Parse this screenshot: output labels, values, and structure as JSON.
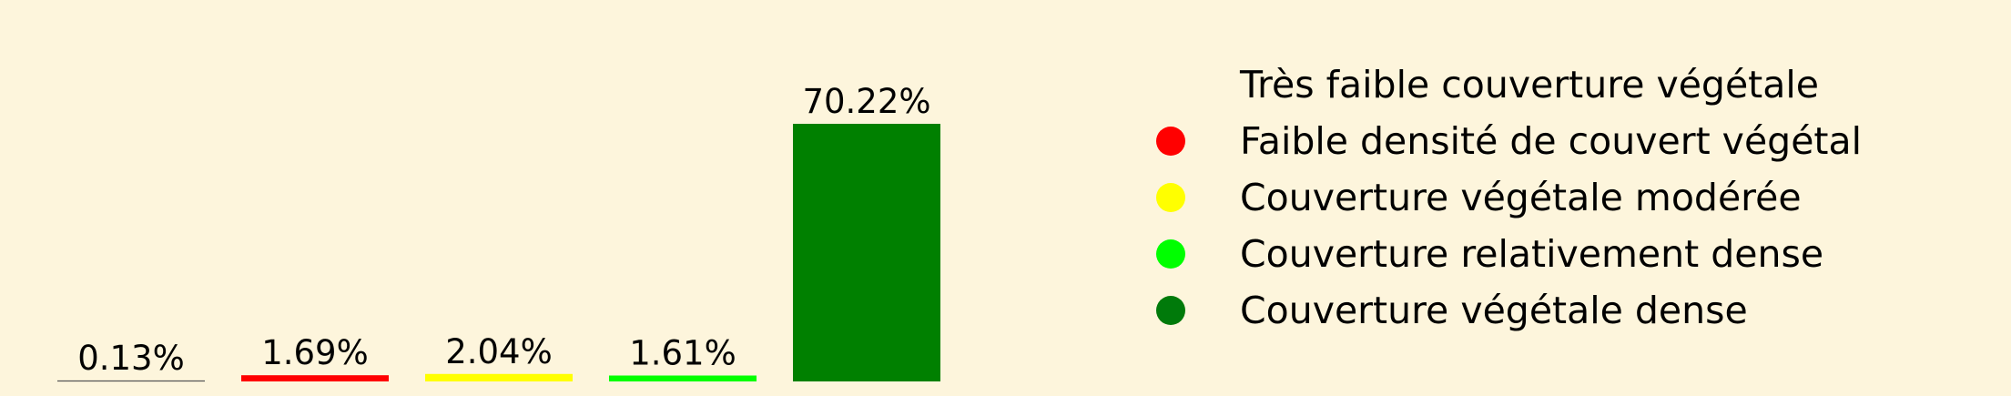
{
  "chart_data": {
    "type": "bar",
    "categories": [
      "Très faible couverture végétale",
      "Faible densité de couvert végétal",
      "Couverture végétale modérée",
      "Couverture relativement dense",
      "Couverture végétale dense"
    ],
    "values": [
      0.13,
      1.69,
      2.04,
      1.61,
      70.22
    ],
    "value_labels": [
      "0.13%",
      "1.69%",
      "2.04%",
      "1.61%",
      "70.22%"
    ],
    "colors": [
      "#fdf5dc",
      "#ff0000",
      "#ffff00",
      "#00ff00",
      "#008000"
    ],
    "legend_colors": [
      "#fdf5dc",
      "#ff0000",
      "#ffff00",
      "#00ff00",
      "#007a0a"
    ],
    "ylim": [
      0,
      70.22
    ],
    "legend_position": "right",
    "grid": false,
    "axes_visible": false
  }
}
